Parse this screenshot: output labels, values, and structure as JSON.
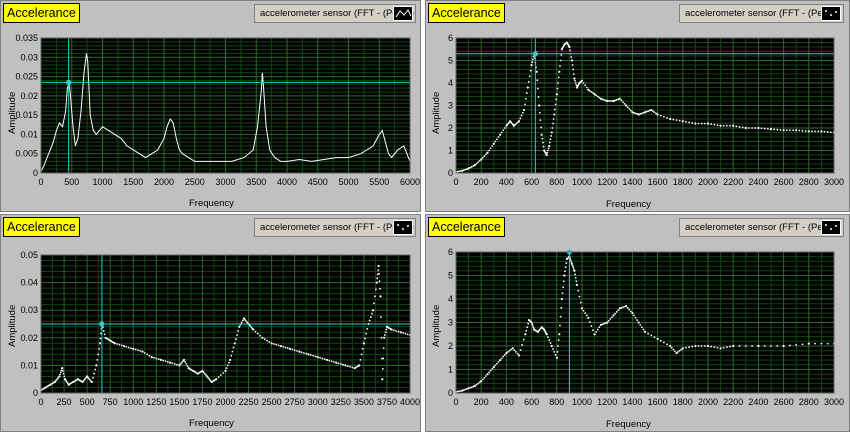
{
  "chart_data": [
    {
      "type": "line",
      "tag": "Accelerance",
      "legend": "accelerometer sensor (FFT - (Peak))",
      "xlabel": "Frequency",
      "ylabel": "Amplitude",
      "xlim": [
        0,
        6000
      ],
      "ylim": [
        0,
        0.035
      ],
      "xticks": [
        0,
        500,
        1000,
        1500,
        2000,
        2500,
        3000,
        3500,
        4000,
        4500,
        5000,
        5500,
        6000
      ],
      "yticks": [
        0,
        0.005,
        0.01,
        0.015,
        0.02,
        0.025,
        0.03,
        0.035
      ],
      "ytick_labels": [
        "0",
        "0.005",
        "0.01",
        "0.015",
        "0.02",
        "0.025",
        "0.03",
        "0.035"
      ],
      "grid": true,
      "marker_style": "line",
      "cursor": {
        "x": 450,
        "y": 0.0235
      },
      "series": [
        {
          "x": [
            0,
            50,
            100,
            150,
            200,
            250,
            300,
            350,
            400,
            430,
            460,
            490,
            520,
            560,
            600,
            650,
            700,
            740,
            760,
            780,
            800,
            850,
            900,
            950,
            1000,
            1100,
            1200,
            1300,
            1400,
            1500,
            1600,
            1700,
            1800,
            1900,
            2000,
            2050,
            2100,
            2150,
            2200,
            2250,
            2300,
            2400,
            2500,
            2700,
            2900,
            3100,
            3300,
            3450,
            3520,
            3580,
            3600,
            3620,
            3660,
            3720,
            3800,
            3900,
            4000,
            4200,
            4400,
            4600,
            4800,
            5000,
            5200,
            5400,
            5500,
            5550,
            5600,
            5650,
            5700,
            5800,
            5900,
            6000
          ],
          "y": [
            0.0005,
            0.002,
            0.004,
            0.006,
            0.008,
            0.011,
            0.013,
            0.012,
            0.016,
            0.022,
            0.0235,
            0.018,
            0.012,
            0.007,
            0.009,
            0.016,
            0.026,
            0.031,
            0.029,
            0.022,
            0.015,
            0.011,
            0.01,
            0.011,
            0.012,
            0.011,
            0.01,
            0.009,
            0.007,
            0.006,
            0.005,
            0.004,
            0.005,
            0.006,
            0.009,
            0.012,
            0.014,
            0.013,
            0.009,
            0.006,
            0.005,
            0.004,
            0.003,
            0.003,
            0.003,
            0.003,
            0.004,
            0.006,
            0.012,
            0.021,
            0.026,
            0.022,
            0.012,
            0.006,
            0.004,
            0.003,
            0.003,
            0.0035,
            0.003,
            0.0035,
            0.004,
            0.004,
            0.005,
            0.007,
            0.01,
            0.011,
            0.008,
            0.005,
            0.004,
            0.006,
            0.007,
            0.003
          ]
        }
      ]
    },
    {
      "type": "scatter",
      "tag": "Accelerance",
      "legend": "accelerometer sensor (FFT - (Peak))",
      "xlabel": "Frequency",
      "ylabel": "Amplitude",
      "xlim": [
        0,
        3000
      ],
      "ylim": [
        0,
        6
      ],
      "xticks": [
        0,
        200,
        400,
        600,
        800,
        1000,
        1200,
        1400,
        1600,
        1800,
        2000,
        2200,
        2400,
        2600,
        2800,
        3000
      ],
      "yticks": [
        0,
        1,
        2,
        3,
        4,
        5,
        6
      ],
      "ytick_labels": [
        "0",
        "1",
        "2",
        "3",
        "4",
        "5",
        "6"
      ],
      "grid": true,
      "marker_style": "dots",
      "cursor": {
        "x": 630,
        "y": 5.3
      },
      "series": [
        {
          "x": [
            0,
            50,
            100,
            150,
            200,
            250,
            300,
            350,
            400,
            430,
            460,
            500,
            540,
            570,
            600,
            620,
            640,
            660,
            680,
            700,
            720,
            740,
            760,
            780,
            800,
            820,
            840,
            860,
            880,
            900,
            920,
            940,
            960,
            980,
            1000,
            1050,
            1100,
            1150,
            1200,
            1250,
            1300,
            1350,
            1400,
            1450,
            1500,
            1550,
            1600,
            1700,
            1800,
            1900,
            2000,
            2100,
            2200,
            2300,
            2400,
            2500,
            2600,
            2700,
            2800,
            2900,
            3000
          ],
          "y": [
            0.05,
            0.1,
            0.2,
            0.35,
            0.6,
            0.9,
            1.3,
            1.7,
            2.1,
            2.3,
            2.1,
            2.3,
            2.8,
            3.8,
            4.8,
            5.3,
            4.5,
            3.0,
            1.7,
            1.0,
            0.8,
            1.2,
            1.8,
            2.6,
            3.5,
            4.5,
            5.5,
            5.7,
            5.8,
            5.6,
            5.0,
            4.2,
            3.8,
            4.0,
            4.1,
            3.7,
            3.5,
            3.3,
            3.2,
            3.2,
            3.3,
            3.0,
            2.7,
            2.6,
            2.7,
            2.8,
            2.6,
            2.4,
            2.3,
            2.2,
            2.2,
            2.1,
            2.1,
            2.0,
            2.0,
            1.95,
            1.9,
            1.9,
            1.85,
            1.85,
            1.8
          ]
        }
      ]
    },
    {
      "type": "scatter",
      "tag": "Accelerance",
      "legend": "accelerometer sensor (FFT - (Peak))",
      "xlabel": "Frequency",
      "ylabel": "Amplitude",
      "xlim": [
        0,
        4000
      ],
      "ylim": [
        0,
        0.05
      ],
      "xticks": [
        0,
        250,
        500,
        750,
        1000,
        1250,
        1500,
        1750,
        2000,
        2250,
        2500,
        2750,
        3000,
        3250,
        3500,
        3750,
        4000
      ],
      "yticks": [
        0,
        0.01,
        0.02,
        0.03,
        0.04,
        0.05
      ],
      "ytick_labels": [
        "0",
        "0.01",
        "0.02",
        "0.03",
        "0.04",
        "0.05"
      ],
      "grid": true,
      "marker_style": "dots",
      "cursor": {
        "x": 660,
        "y": 0.025
      },
      "series": [
        {
          "x": [
            0,
            50,
            100,
            150,
            200,
            230,
            260,
            300,
            350,
            400,
            450,
            500,
            550,
            600,
            640,
            660,
            700,
            750,
            800,
            900,
            1000,
            1100,
            1200,
            1300,
            1400,
            1500,
            1550,
            1600,
            1650,
            1700,
            1750,
            1800,
            1850,
            1900,
            2000,
            2050,
            2100,
            2150,
            2200,
            2250,
            2300,
            2400,
            2500,
            2600,
            2700,
            2800,
            2900,
            3000,
            3100,
            3200,
            3300,
            3400,
            3450,
            3500,
            3550,
            3600,
            3640,
            3660,
            3680,
            3700,
            3720,
            3750,
            3800,
            3900,
            4000
          ],
          "y": [
            0.001,
            0.002,
            0.003,
            0.004,
            0.006,
            0.009,
            0.005,
            0.003,
            0.004,
            0.005,
            0.004,
            0.006,
            0.004,
            0.01,
            0.018,
            0.025,
            0.02,
            0.019,
            0.018,
            0.017,
            0.016,
            0.015,
            0.013,
            0.012,
            0.011,
            0.01,
            0.012,
            0.009,
            0.008,
            0.007,
            0.008,
            0.006,
            0.004,
            0.005,
            0.008,
            0.012,
            0.018,
            0.024,
            0.027,
            0.025,
            0.023,
            0.02,
            0.018,
            0.017,
            0.016,
            0.015,
            0.014,
            0.013,
            0.012,
            0.011,
            0.01,
            0.009,
            0.01,
            0.018,
            0.025,
            0.03,
            0.04,
            0.046,
            0.035,
            0.005,
            0.02,
            0.024,
            0.023,
            0.022,
            0.021
          ]
        }
      ]
    },
    {
      "type": "scatter",
      "tag": "Accelerance",
      "legend": "accelerometer sensor (FFT - (Peak))",
      "xlabel": "Frequency",
      "ylabel": "Amplitude",
      "xlim": [
        0,
        3000
      ],
      "ylim": [
        0,
        6
      ],
      "xticks": [
        0,
        200,
        400,
        600,
        800,
        1000,
        1200,
        1400,
        1600,
        1800,
        2000,
        2200,
        2400,
        2600,
        2800,
        3000
      ],
      "yticks": [
        0,
        1,
        2,
        3,
        4,
        5,
        6
      ],
      "ytick_labels": [
        "0",
        "1",
        "2",
        "3",
        "4",
        "5",
        "6"
      ],
      "grid": true,
      "marker_style": "dots",
      "cursor": {
        "x": 900,
        "y": 6.0
      },
      "series": [
        {
          "x": [
            0,
            50,
            100,
            150,
            200,
            250,
            300,
            350,
            400,
            450,
            500,
            550,
            580,
            600,
            620,
            650,
            680,
            700,
            720,
            760,
            800,
            820,
            840,
            860,
            880,
            900,
            920,
            940,
            960,
            1000,
            1050,
            1100,
            1150,
            1200,
            1250,
            1300,
            1350,
            1400,
            1450,
            1500,
            1600,
            1700,
            1750,
            1800,
            1900,
            2000,
            2100,
            2200,
            2400,
            2600,
            2800,
            3000
          ],
          "y": [
            0.05,
            0.1,
            0.2,
            0.3,
            0.5,
            0.8,
            1.1,
            1.4,
            1.7,
            1.9,
            1.6,
            2.5,
            3.1,
            3.0,
            2.7,
            2.6,
            2.8,
            2.7,
            2.5,
            2.0,
            1.5,
            2.5,
            4.0,
            5.0,
            5.7,
            5.8,
            5.5,
            5.2,
            4.6,
            3.6,
            3.2,
            2.5,
            2.9,
            3.0,
            3.3,
            3.6,
            3.7,
            3.4,
            3.0,
            2.6,
            2.3,
            2.0,
            1.7,
            1.9,
            2.0,
            2.0,
            1.9,
            2.0,
            2.0,
            2.0,
            2.1,
            2.1
          ]
        }
      ]
    }
  ]
}
